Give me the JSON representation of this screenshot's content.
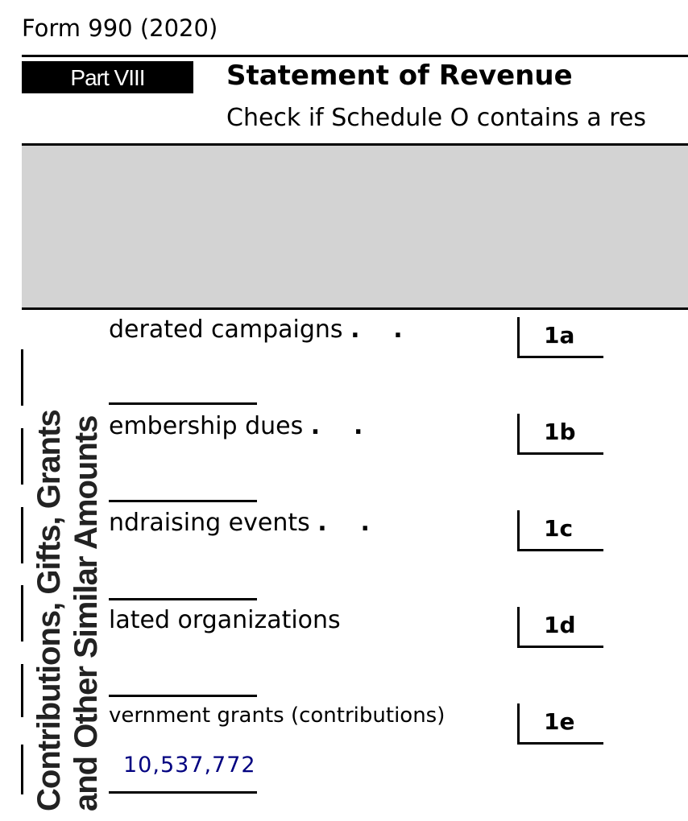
{
  "form_title": "Form 990 (2020)",
  "part": {
    "label": "Part VIII",
    "title": "Statement of Revenue"
  },
  "check_text": "Check if Schedule O contains a res",
  "side_label": {
    "line1": "Contributions, Gifts, Grants",
    "line2": "and Other Similar Amounts"
  },
  "rows": [
    {
      "text": "derated campaigns",
      "dots": ".    .",
      "line": "1a"
    },
    {
      "text": "embership dues",
      "dots": ".    .",
      "line": "1b"
    },
    {
      "text": "ndraising events",
      "dots": ".    .",
      "line": "1c"
    },
    {
      "text": "lated organizations",
      "dots": "",
      "line": "1d"
    },
    {
      "text": "vernment grants (contributions)",
      "dots": "",
      "line": "1e"
    }
  ],
  "amount": "10,537,772",
  "colors": {
    "amount": "#000080",
    "header_band": "#d3d3d3"
  }
}
